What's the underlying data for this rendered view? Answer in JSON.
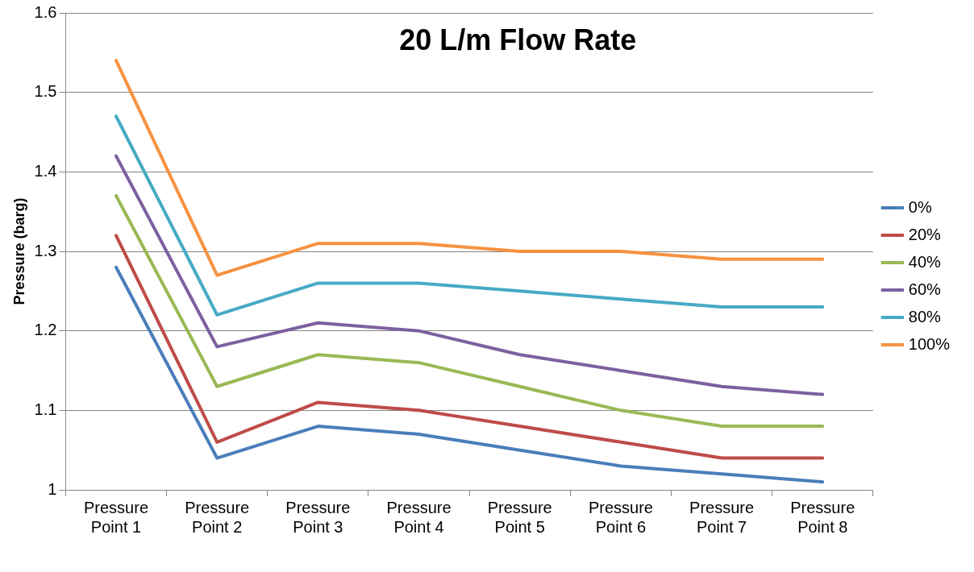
{
  "chart_data": {
    "type": "line",
    "title": "20 L/m Flow Rate",
    "ylabel": "Pressure (barg)",
    "categories": [
      "Pressure Point 1",
      "Pressure Point 2",
      "Pressure Point 3",
      "Pressure Point 4",
      "Pressure Point 5",
      "Pressure Point 6",
      "Pressure Point 7",
      "Pressure Point 8"
    ],
    "series": [
      {
        "name": "0%",
        "color": "#4a7ebb",
        "values": [
          1.28,
          1.04,
          1.08,
          1.07,
          1.05,
          1.03,
          1.02,
          1.01
        ]
      },
      {
        "name": "20%",
        "color": "#be4b48",
        "values": [
          1.32,
          1.06,
          1.11,
          1.1,
          1.08,
          1.06,
          1.04,
          1.04
        ]
      },
      {
        "name": "40%",
        "color": "#98b954",
        "values": [
          1.37,
          1.13,
          1.17,
          1.16,
          1.13,
          1.1,
          1.08,
          1.08
        ]
      },
      {
        "name": "60%",
        "color": "#7d60a0",
        "values": [
          1.42,
          1.18,
          1.21,
          1.2,
          1.17,
          1.15,
          1.13,
          1.12
        ]
      },
      {
        "name": "80%",
        "color": "#46aac5",
        "values": [
          1.47,
          1.22,
          1.26,
          1.26,
          1.25,
          1.24,
          1.23,
          1.23
        ]
      },
      {
        "name": "100%",
        "color": "#f69240",
        "values": [
          1.54,
          1.27,
          1.31,
          1.31,
          1.3,
          1.3,
          1.29,
          1.29
        ]
      }
    ],
    "ylim": [
      1,
      1.6
    ],
    "yticks": [
      1,
      1.1,
      1.2,
      1.3,
      1.4,
      1.5,
      1.6
    ],
    "grid": "y",
    "legend": "right",
    "marker": "none"
  }
}
